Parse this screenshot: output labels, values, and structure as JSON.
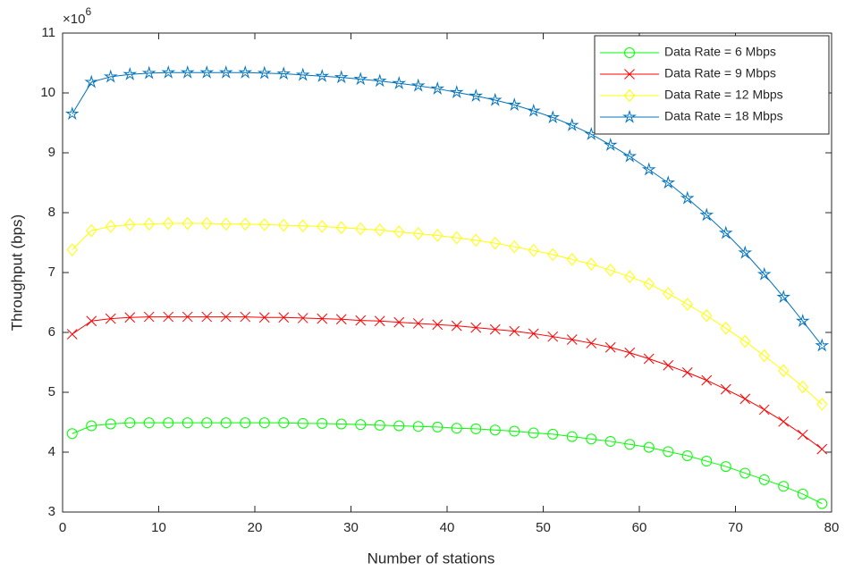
{
  "chart_data": {
    "type": "line",
    "x_label": "Number of stations",
    "y_label": "Throughput (bps)",
    "y_multiplier_base": "×10",
    "y_multiplier_exp": "6",
    "x": [
      1,
      3,
      5,
      7,
      9,
      11,
      13,
      15,
      17,
      19,
      21,
      23,
      25,
      27,
      29,
      31,
      33,
      35,
      37,
      39,
      41,
      43,
      45,
      47,
      49,
      51,
      53,
      55,
      57,
      59,
      61,
      63,
      65,
      67,
      69,
      71,
      73,
      75,
      77,
      79
    ],
    "xlim": [
      0,
      80
    ],
    "xticks": [
      0,
      10,
      20,
      30,
      40,
      50,
      60,
      70,
      80
    ],
    "ylim": [
      3,
      11
    ],
    "yticks": [
      3,
      4,
      5,
      6,
      7,
      8,
      9,
      10,
      11
    ],
    "grid": false,
    "legend_position": "upper right",
    "series": [
      {
        "name": "Data Rate = 6 Mbps",
        "color": "#00ff00",
        "marker": "circle",
        "values": [
          4.31,
          4.44,
          4.47,
          4.49,
          4.49,
          4.49,
          4.49,
          4.49,
          4.49,
          4.49,
          4.49,
          4.49,
          4.48,
          4.48,
          4.47,
          4.46,
          4.45,
          4.44,
          4.43,
          4.42,
          4.4,
          4.39,
          4.37,
          4.35,
          4.32,
          4.3,
          4.26,
          4.22,
          4.18,
          4.13,
          4.08,
          4.01,
          3.94,
          3.85,
          3.76,
          3.65,
          3.54,
          3.43,
          3.3,
          3.14
        ]
      },
      {
        "name": "Data Rate = 9 Mbps",
        "color": "#ff0000",
        "marker": "cross",
        "values": [
          5.97,
          6.19,
          6.23,
          6.25,
          6.26,
          6.26,
          6.26,
          6.26,
          6.26,
          6.26,
          6.25,
          6.25,
          6.24,
          6.23,
          6.22,
          6.2,
          6.19,
          6.17,
          6.15,
          6.13,
          6.11,
          6.08,
          6.05,
          6.02,
          5.98,
          5.93,
          5.88,
          5.82,
          5.75,
          5.66,
          5.56,
          5.45,
          5.33,
          5.2,
          5.05,
          4.89,
          4.71,
          4.51,
          4.29,
          4.05
        ]
      },
      {
        "name": "Data Rate = 12 Mbps",
        "color": "#ffff00",
        "marker": "diamond",
        "values": [
          7.38,
          7.7,
          7.77,
          7.8,
          7.81,
          7.82,
          7.82,
          7.82,
          7.81,
          7.81,
          7.8,
          7.79,
          7.78,
          7.77,
          7.75,
          7.73,
          7.71,
          7.68,
          7.65,
          7.62,
          7.58,
          7.54,
          7.49,
          7.43,
          7.37,
          7.3,
          7.22,
          7.14,
          7.04,
          6.93,
          6.81,
          6.65,
          6.47,
          6.28,
          6.07,
          5.85,
          5.61,
          5.36,
          5.09,
          4.8
        ]
      },
      {
        "name": "Data Rate = 18 Mbps",
        "color": "#0072bd",
        "marker": "star",
        "values": [
          9.65,
          10.18,
          10.27,
          10.31,
          10.33,
          10.34,
          10.34,
          10.34,
          10.34,
          10.34,
          10.33,
          10.32,
          10.3,
          10.28,
          10.26,
          10.23,
          10.2,
          10.16,
          10.12,
          10.07,
          10.01,
          9.95,
          9.88,
          9.8,
          9.7,
          9.59,
          9.46,
          9.31,
          9.13,
          8.94,
          8.72,
          8.5,
          8.24,
          7.96,
          7.66,
          7.33,
          6.97,
          6.59,
          6.19,
          5.78
        ]
      }
    ]
  }
}
